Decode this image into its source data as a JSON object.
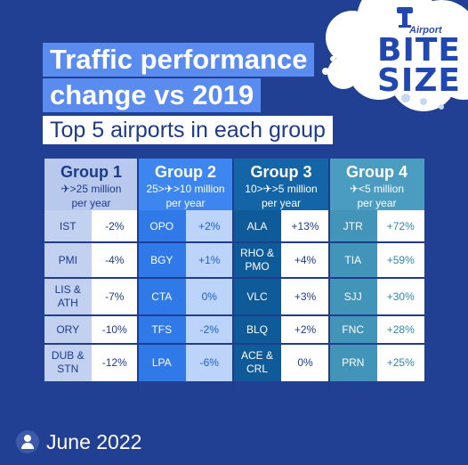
{
  "logo": {
    "top": "Airport",
    "line1": "BITE",
    "line2": "SIZE"
  },
  "title": {
    "line1": "Traffic performance",
    "line2": "change vs 2019",
    "subtitle": "Top 5 airports in each group"
  },
  "groups": [
    {
      "name": "Group 1",
      "sub1": "✈>25 million",
      "sub2": "per year",
      "colors": {
        "head": "#b9c9ee",
        "headText": "#1d3b8b",
        "name": "#c3d1f1",
        "val": "#ffffff",
        "text": "#1d3b8b"
      },
      "rows": [
        {
          "airport": "IST",
          "change": "-2%"
        },
        {
          "airport": "PMI",
          "change": "-4%"
        },
        {
          "airport": "LIS & ATH",
          "change": "-7%"
        },
        {
          "airport": "ORY",
          "change": "-10%"
        },
        {
          "airport": "DUB & STN",
          "change": "-12%"
        }
      ]
    },
    {
      "name": "Group 2",
      "sub1": "25>✈>10 million",
      "sub2": "per year",
      "colors": {
        "head": "#3d86f0",
        "headText": "#ffffff",
        "name": "#2f7ae8",
        "val": "#bcd4fa",
        "text": "#ffffff",
        "valText": "#1d5fcc"
      },
      "rows": [
        {
          "airport": "OPO",
          "change": "+2%"
        },
        {
          "airport": "BGY",
          "change": "+1%"
        },
        {
          "airport": "CTA",
          "change": "0%"
        },
        {
          "airport": "TFS",
          "change": "-2%"
        },
        {
          "airport": "LPA",
          "change": "-6%"
        }
      ]
    },
    {
      "name": "Group 3",
      "sub1": "10>✈>5 million",
      "sub2": "per year",
      "colors": {
        "head": "#1365a8",
        "headText": "#ffffff",
        "name": "#0f5b99",
        "val": "#ffffff",
        "text": "#ffffff",
        "valText": "#1d3b8b"
      },
      "rows": [
        {
          "airport": "ALA",
          "change": "+13%"
        },
        {
          "airport": "RHO & PMO",
          "change": "+4%"
        },
        {
          "airport": "VLC",
          "change": "+3%"
        },
        {
          "airport": "BLQ",
          "change": "+2%"
        },
        {
          "airport": "ACE & CRL",
          "change": "0%"
        }
      ]
    },
    {
      "name": "Group 4",
      "sub1": "✈<5 million",
      "sub2": "per year",
      "colors": {
        "head": "#4a9cc0",
        "headText": "#ffffff",
        "name": "#4394b9",
        "val": "#ffffff",
        "text": "#ffffff",
        "valText": "#2b86ad"
      },
      "rows": [
        {
          "airport": "JTR",
          "change": "+72%"
        },
        {
          "airport": "TIA",
          "change": "+59%"
        },
        {
          "airport": "SJJ",
          "change": "+30%"
        },
        {
          "airport": "FNC",
          "change": "+28%"
        },
        {
          "airport": "PRN",
          "change": "+25%"
        }
      ]
    }
  ],
  "date": "June 2022"
}
